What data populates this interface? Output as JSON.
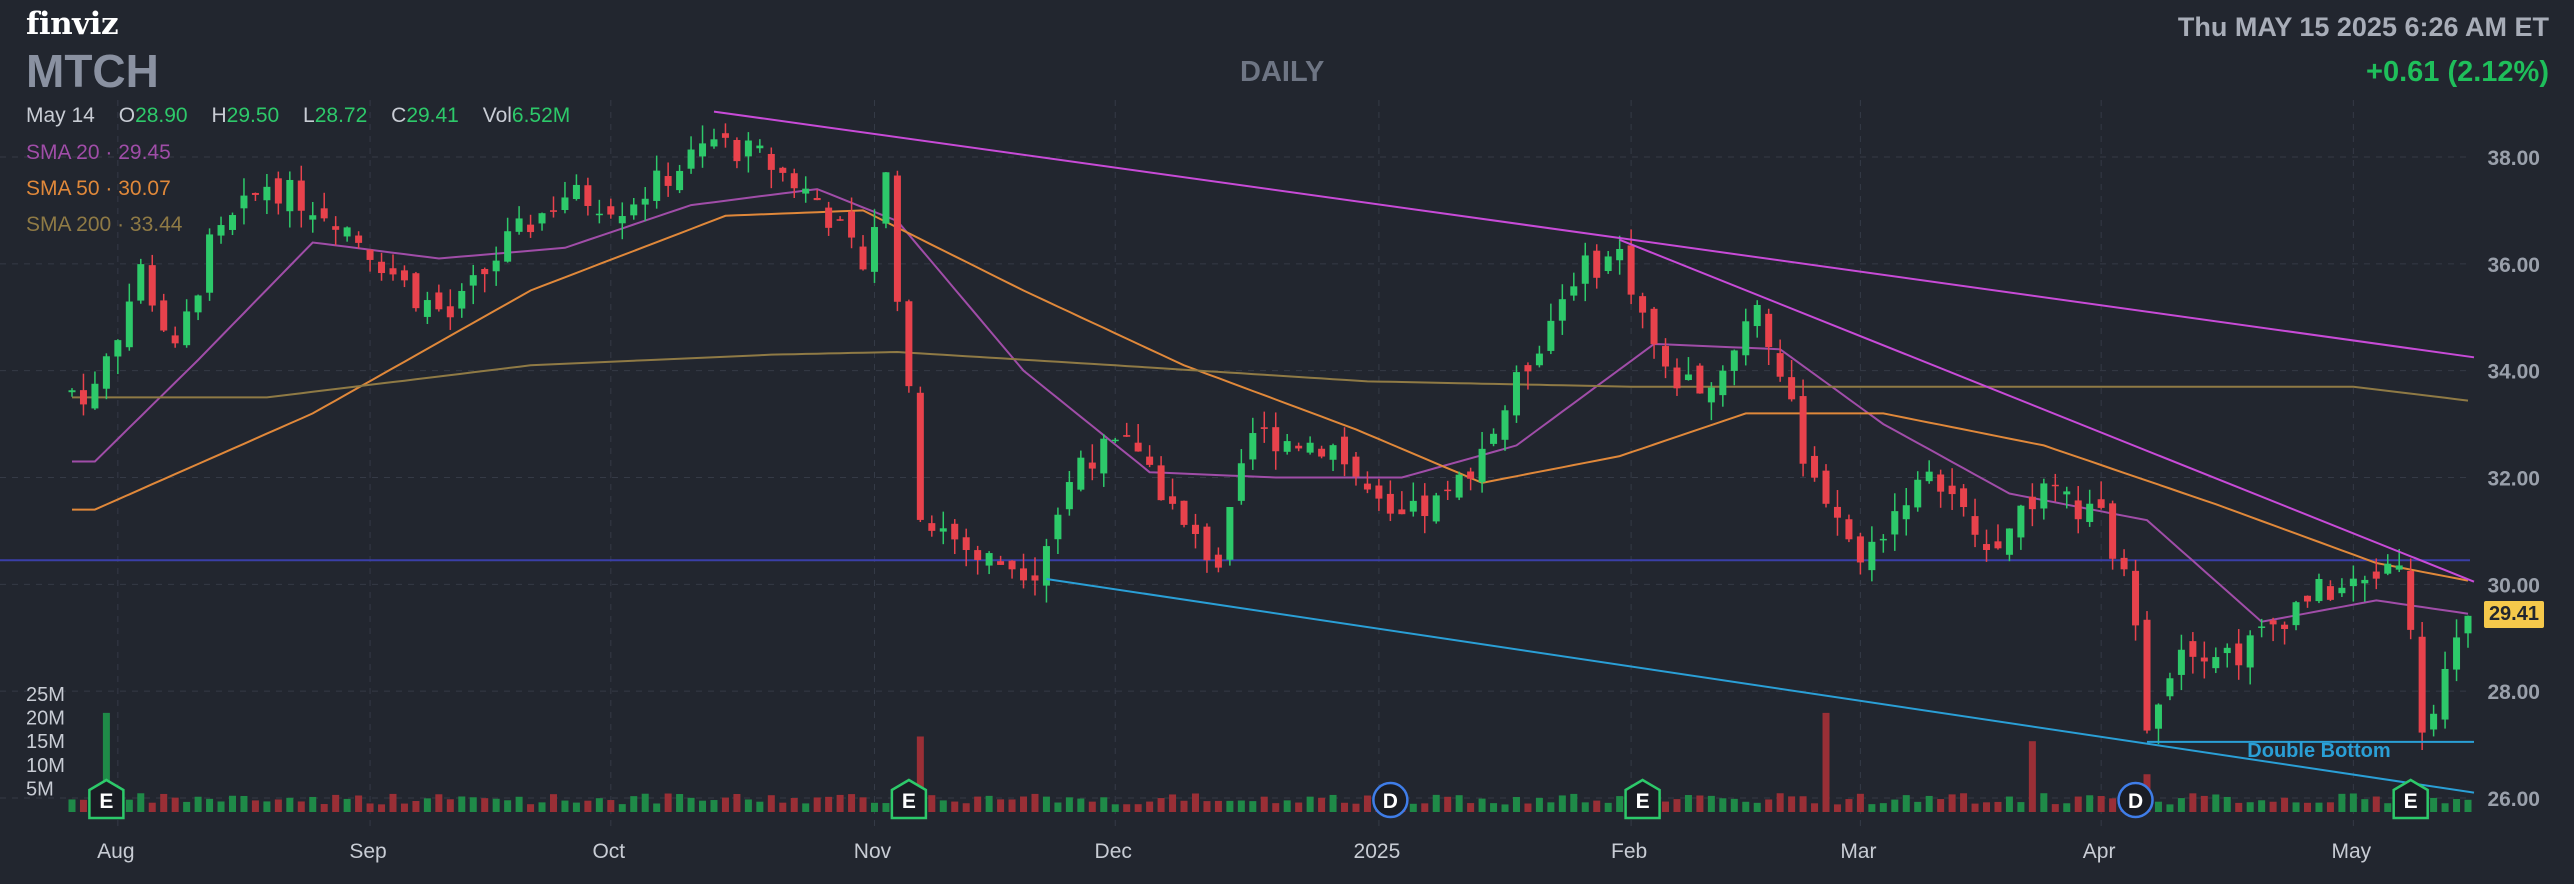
{
  "header": {
    "logo": "finviz",
    "ticker": "MTCH",
    "period": "DAILY",
    "datetime": "Thu MAY 15 2025 6:26 AM ET",
    "change": "+0.61 (2.12%)"
  },
  "ohlc": {
    "date": "May 14",
    "open_label": "O",
    "open": "28.90",
    "high_label": "H",
    "high": "29.50",
    "low_label": "L",
    "low": "28.72",
    "close_label": "C",
    "close": "29.41",
    "vol_label": "Vol",
    "vol": "6.52M"
  },
  "sma_legend": [
    {
      "label": "SMA 20",
      "value": "29.45",
      "color": "#a04da8"
    },
    {
      "label": "SMA 50",
      "value": "30.07",
      "color": "#e0883a"
    },
    {
      "label": "SMA 200",
      "value": "33.44",
      "color": "#8f7a45"
    }
  ],
  "last_price_tag": "29.41",
  "colors": {
    "background": "#22262f",
    "grid": "#353a46",
    "up": "#2dc96a",
    "down": "#e8424c",
    "vol_up": "#1f8a48",
    "vol_down": "#9a2f36",
    "trendline_upper": "#c84bd8",
    "trendline_lower": "#2a9fd6",
    "horizontal_line": "#3a3fa8",
    "double_bottom_line": "#2a9fd6"
  },
  "chart_data": {
    "type": "candlestick",
    "y_axis": {
      "ticks": [
        "38.00",
        "36.00",
        "34.00",
        "32.00",
        "30.00",
        "28.00",
        "26.00"
      ],
      "range": [
        25.6,
        39.0
      ]
    },
    "volume_axis": {
      "ticks": [
        "25M",
        "20M",
        "15M",
        "10M",
        "5M"
      ]
    },
    "x_axis": {
      "ticks": [
        "Aug",
        "Sep",
        "Oct",
        "Nov",
        "Dec",
        "2025",
        "Feb",
        "Mar",
        "Apr",
        "May"
      ]
    },
    "grid": true,
    "horizontal_line": 30.45,
    "trendlines": [
      {
        "name": "upper",
        "from": [
          "2024-10-14",
          38.85
        ],
        "to": [
          "2025-05-15",
          34.25
        ]
      },
      {
        "name": "upper-steep",
        "from": [
          "2025-01-31",
          36.45
        ],
        "to": [
          "2025-05-15",
          30.05
        ]
      },
      {
        "name": "lower",
        "from": [
          "2024-11-22",
          30.1
        ],
        "to": [
          "2025-05-15",
          26.1
        ]
      },
      {
        "name": "double-bottom",
        "from": [
          "2025-04-07",
          27.05
        ],
        "to": [
          "2025-05-15",
          27.05
        ]
      }
    ],
    "annotation": {
      "text": "Double Bottom",
      "date": "2025-04-28",
      "price": 26.9
    },
    "event_markers": [
      {
        "letter": "E",
        "date": "2024-07-31"
      },
      {
        "letter": "E",
        "date": "2024-11-06"
      },
      {
        "letter": "D",
        "date": "2025-01-03"
      },
      {
        "letter": "E",
        "date": "2025-02-04"
      },
      {
        "letter": "D",
        "date": "2025-04-04"
      },
      {
        "letter": "E",
        "date": "2025-05-08"
      }
    ],
    "price_keyframes": [
      [
        "2024-07-30",
        33.6
      ],
      [
        "2024-08-05",
        35.9
      ],
      [
        "2024-08-08",
        34.3
      ],
      [
        "2024-08-13",
        36.3
      ],
      [
        "2024-08-20",
        37.5
      ],
      [
        "2024-08-28",
        36.9
      ],
      [
        "2024-09-06",
        35.4
      ],
      [
        "2024-09-11",
        35.0
      ],
      [
        "2024-09-18",
        36.4
      ],
      [
        "2024-09-25",
        37.3
      ],
      [
        "2024-10-02",
        37.1
      ],
      [
        "2024-10-07",
        37.5
      ],
      [
        "2024-10-14",
        38.3
      ],
      [
        "2024-10-18",
        38.0
      ],
      [
        "2024-10-25",
        37.2
      ],
      [
        "2024-10-31",
        36.0
      ],
      [
        "2024-11-04",
        37.6
      ],
      [
        "2024-11-07",
        31.4
      ],
      [
        "2024-11-14",
        30.5
      ],
      [
        "2024-11-21",
        30.3
      ],
      [
        "2024-11-27",
        32.4
      ],
      [
        "2024-12-04",
        32.6
      ],
      [
        "2024-12-10",
        31.0
      ],
      [
        "2024-12-13",
        30.4
      ],
      [
        "2024-12-18",
        32.8
      ],
      [
        "2024-12-27",
        32.6
      ],
      [
        "2025-01-03",
        31.1
      ],
      [
        "2025-01-10",
        31.6
      ],
      [
        "2025-01-16",
        32.9
      ],
      [
        "2025-01-27",
        35.8
      ],
      [
        "2025-01-31",
        36.2
      ],
      [
        "2025-02-06",
        33.9
      ],
      [
        "2025-02-12",
        33.7
      ],
      [
        "2025-02-18",
        35.3
      ],
      [
        "2025-02-24",
        32.5
      ],
      [
        "2025-03-03",
        30.4
      ],
      [
        "2025-03-07",
        31.7
      ],
      [
        "2025-03-12",
        32.0
      ],
      [
        "2025-03-18",
        30.6
      ],
      [
        "2025-03-25",
        31.7
      ],
      [
        "2025-04-01",
        31.2
      ],
      [
        "2025-04-04",
        29.5
      ],
      [
        "2025-04-07",
        27.5
      ],
      [
        "2025-04-10",
        28.9
      ],
      [
        "2025-04-17",
        28.7
      ],
      [
        "2025-04-25",
        29.8
      ],
      [
        "2025-05-02",
        30.0
      ],
      [
        "2025-05-07",
        30.6
      ],
      [
        "2025-05-09",
        27.4
      ],
      [
        "2025-05-13",
        28.3
      ],
      [
        "2025-05-15",
        29.41
      ]
    ],
    "sma20_keyframes": [
      [
        "2024-07-30",
        32.3
      ],
      [
        "2024-08-10",
        34.2
      ],
      [
        "2024-08-25",
        36.4
      ],
      [
        "2024-09-10",
        36.1
      ],
      [
        "2024-09-25",
        36.3
      ],
      [
        "2024-10-10",
        37.1
      ],
      [
        "2024-10-25",
        37.4
      ],
      [
        "2024-11-05",
        36.8
      ],
      [
        "2024-11-20",
        34.0
      ],
      [
        "2024-12-05",
        32.1
      ],
      [
        "2024-12-20",
        32.0
      ],
      [
        "2025-01-06",
        32.0
      ],
      [
        "2025-01-20",
        32.6
      ],
      [
        "2025-02-05",
        34.5
      ],
      [
        "2025-02-20",
        34.4
      ],
      [
        "2025-03-05",
        33.0
      ],
      [
        "2025-03-20",
        31.7
      ],
      [
        "2025-04-05",
        31.2
      ],
      [
        "2025-04-20",
        29.3
      ],
      [
        "2025-05-05",
        29.7
      ],
      [
        "2025-05-15",
        29.45
      ]
    ],
    "sma50_keyframes": [
      [
        "2024-07-30",
        31.4
      ],
      [
        "2024-08-25",
        33.2
      ],
      [
        "2024-09-20",
        35.5
      ],
      [
        "2024-10-15",
        36.9
      ],
      [
        "2024-10-31",
        37.0
      ],
      [
        "2024-11-20",
        35.5
      ],
      [
        "2024-12-10",
        34.1
      ],
      [
        "2024-12-31",
        32.9
      ],
      [
        "2025-01-15",
        31.9
      ],
      [
        "2025-01-31",
        32.4
      ],
      [
        "2025-02-15",
        33.2
      ],
      [
        "2025-03-05",
        33.2
      ],
      [
        "2025-03-25",
        32.6
      ],
      [
        "2025-04-15",
        31.5
      ],
      [
        "2025-05-05",
        30.4
      ],
      [
        "2025-05-15",
        30.07
      ]
    ],
    "sma200_keyframes": [
      [
        "2024-07-30",
        33.5
      ],
      [
        "2024-08-20",
        33.5
      ],
      [
        "2024-09-20",
        34.1
      ],
      [
        "2024-10-20",
        34.3
      ],
      [
        "2024-11-05",
        34.35
      ],
      [
        "2024-12-01",
        34.1
      ],
      [
        "2025-01-01",
        33.8
      ],
      [
        "2025-02-01",
        33.7
      ],
      [
        "2025-03-01",
        33.7
      ],
      [
        "2025-04-01",
        33.7
      ],
      [
        "2025-05-01",
        33.7
      ],
      [
        "2025-05-15",
        33.44
      ]
    ]
  }
}
